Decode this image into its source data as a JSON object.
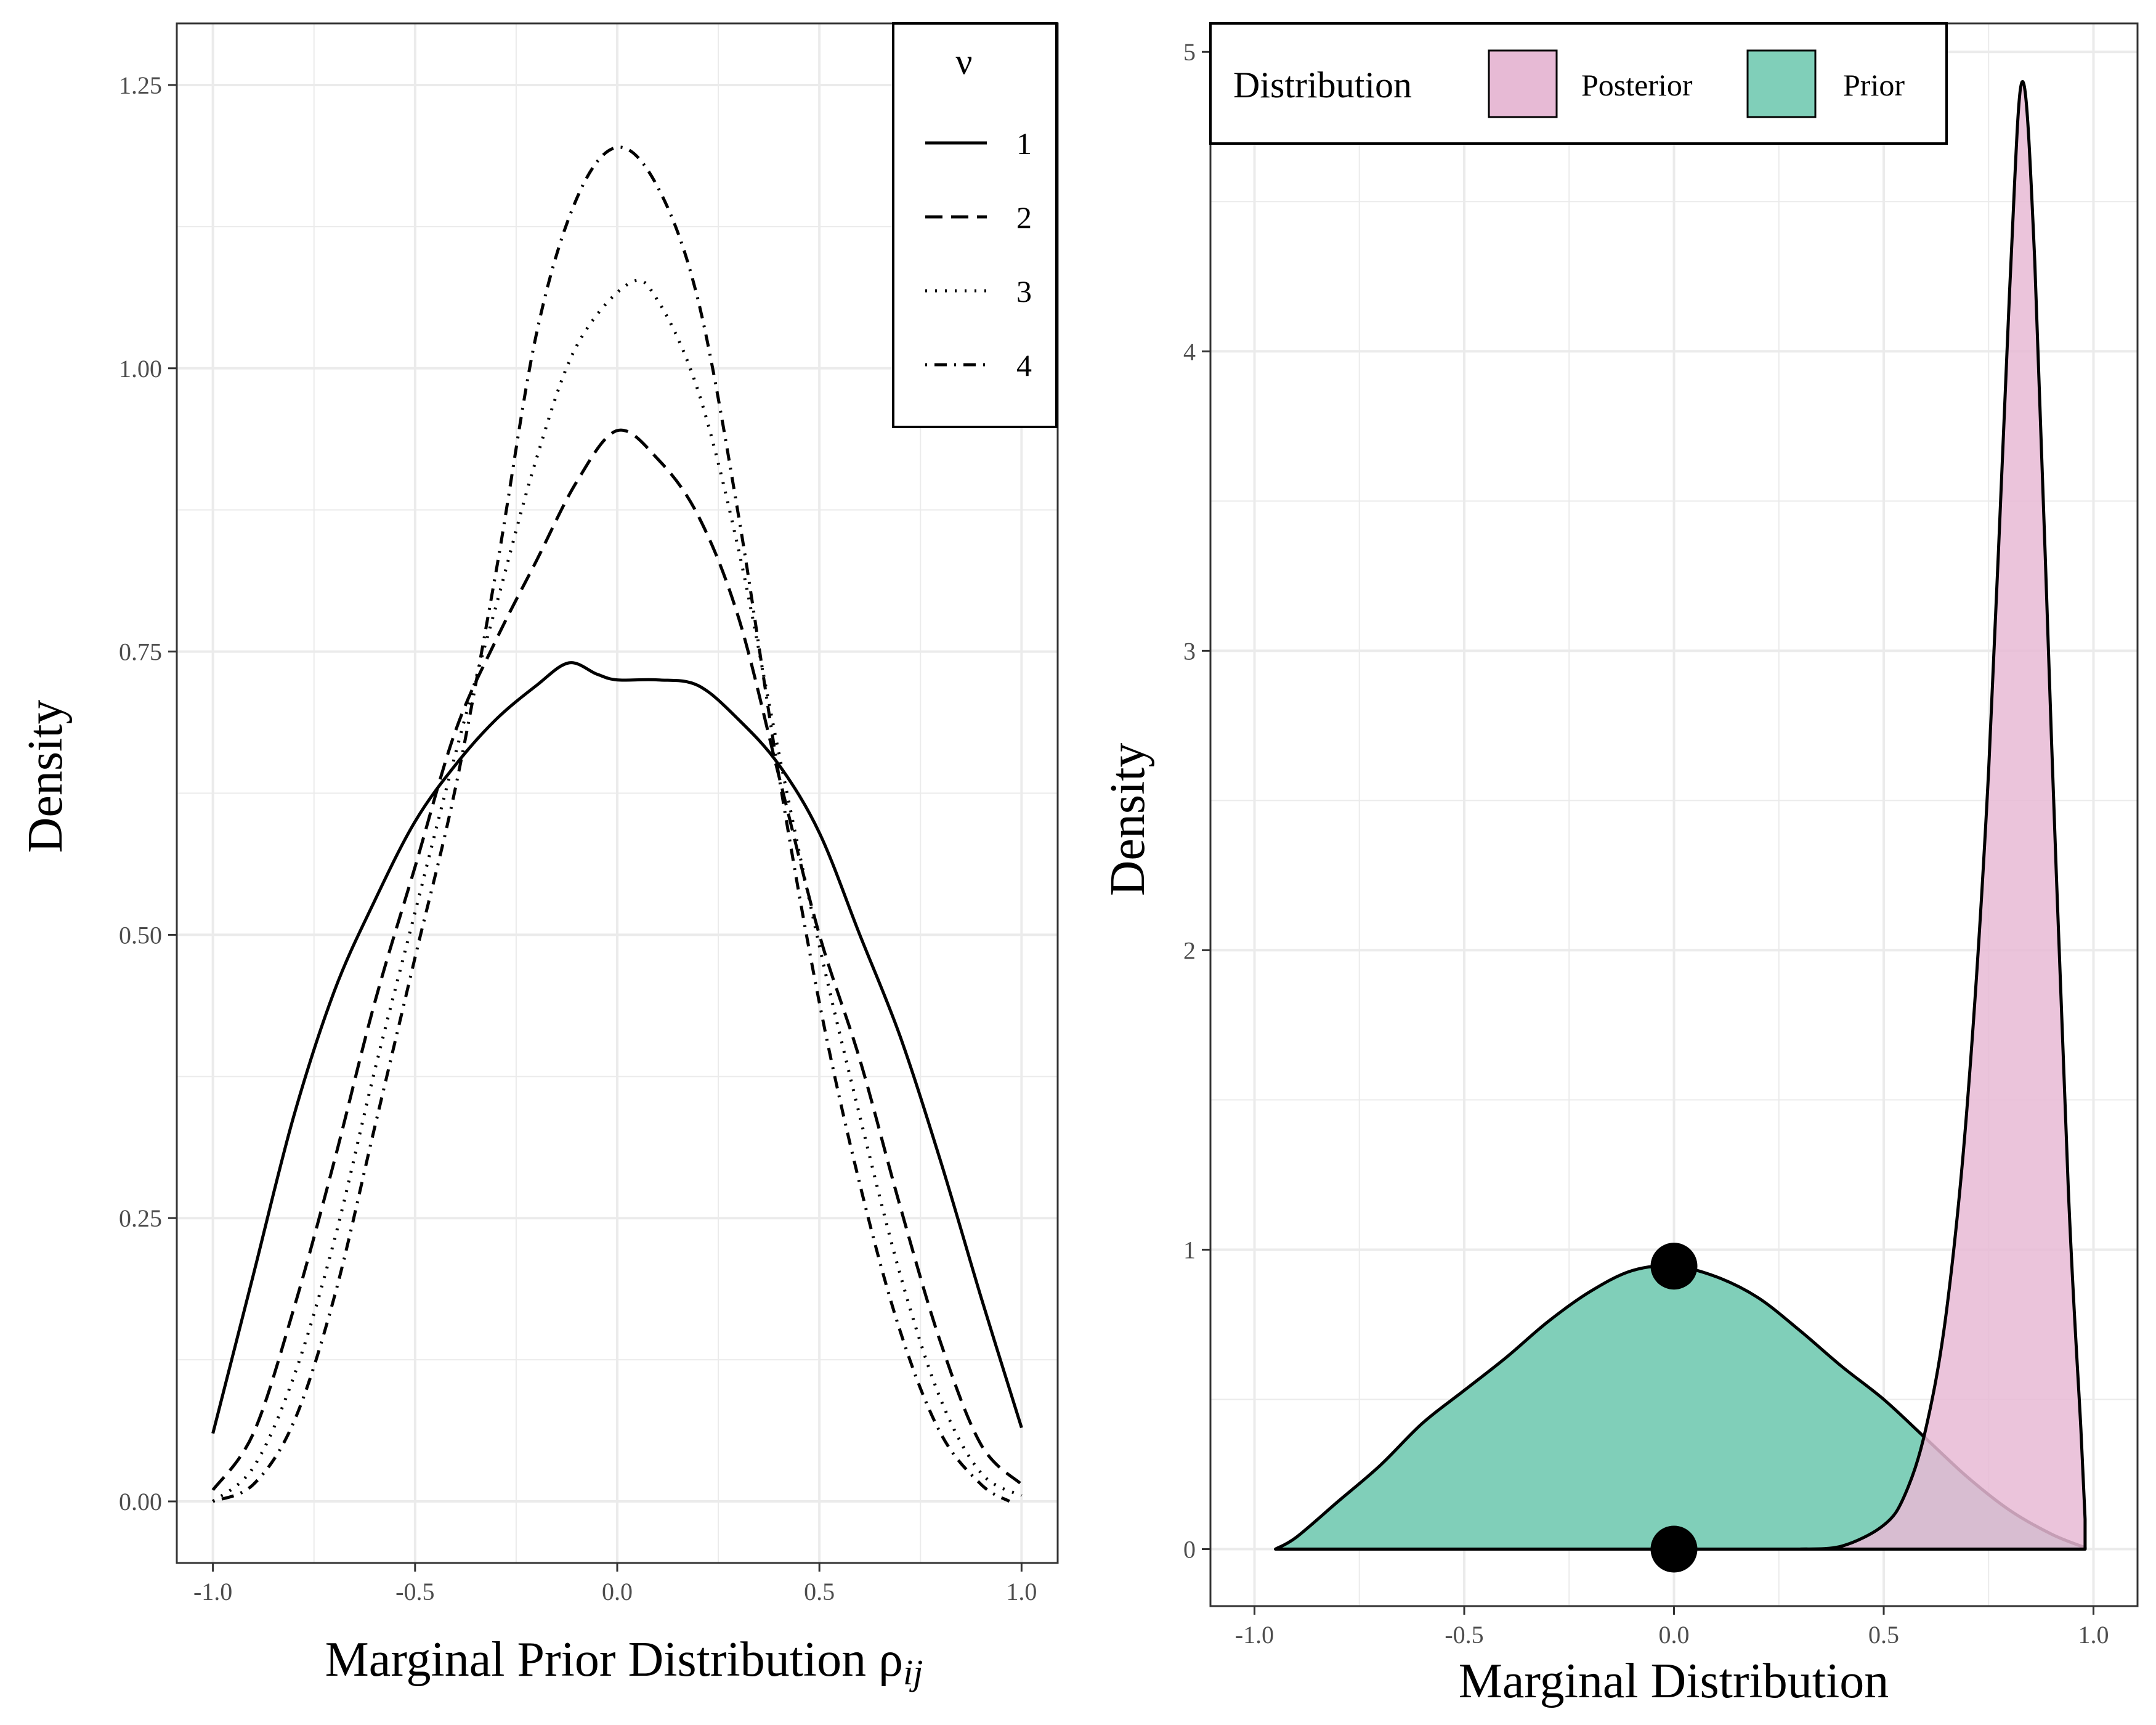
{
  "colors": {
    "grid": "#ebebeb",
    "panel_border": "#333333",
    "posterior_fill": "#e7bad5",
    "prior_fill": "#80cfb9",
    "line": "#000000"
  },
  "chart_data": [
    {
      "type": "line",
      "title": "",
      "xlabel_main": "Marginal Prior Distribution ρ",
      "xlabel_sub": "ij",
      "ylabel": "Density",
      "xlim": [
        -1.0,
        1.0
      ],
      "ylim": [
        0,
        1.25
      ],
      "x_ticks": [
        "-1.0",
        "-0.5",
        "0.0",
        "0.5",
        "1.0"
      ],
      "y_ticks": [
        "0.00",
        "0.25",
        "0.50",
        "0.75",
        "1.00",
        "1.25"
      ],
      "grid": true,
      "legend": {
        "title": "ν",
        "placement": "top-right",
        "entries": [
          "1",
          "2",
          "3",
          "4"
        ]
      },
      "series": [
        {
          "name": "1",
          "dash": "solid",
          "points": [
            [
              -1.0,
              0.06
            ],
            [
              -0.9,
              0.2
            ],
            [
              -0.8,
              0.34
            ],
            [
              -0.7,
              0.45
            ],
            [
              -0.6,
              0.53
            ],
            [
              -0.5,
              0.6
            ],
            [
              -0.4,
              0.65
            ],
            [
              -0.3,
              0.69
            ],
            [
              -0.2,
              0.72
            ],
            [
              -0.12,
              0.74
            ],
            [
              -0.05,
              0.73
            ],
            [
              0.0,
              0.725
            ],
            [
              0.1,
              0.725
            ],
            [
              0.2,
              0.72
            ],
            [
              0.3,
              0.69
            ],
            [
              0.4,
              0.65
            ],
            [
              0.5,
              0.59
            ],
            [
              0.6,
              0.5
            ],
            [
              0.7,
              0.41
            ],
            [
              0.8,
              0.3
            ],
            [
              0.9,
              0.18
            ],
            [
              1.0,
              0.065
            ]
          ]
        },
        {
          "name": "2",
          "dash": "long",
          "points": [
            [
              -1.0,
              0.01
            ],
            [
              -0.9,
              0.06
            ],
            [
              -0.8,
              0.17
            ],
            [
              -0.7,
              0.3
            ],
            [
              -0.6,
              0.44
            ],
            [
              -0.5,
              0.56
            ],
            [
              -0.4,
              0.68
            ],
            [
              -0.3,
              0.76
            ],
            [
              -0.2,
              0.83
            ],
            [
              -0.1,
              0.9
            ],
            [
              0.0,
              0.945
            ],
            [
              0.1,
              0.92
            ],
            [
              0.2,
              0.87
            ],
            [
              0.3,
              0.78
            ],
            [
              0.4,
              0.64
            ],
            [
              0.5,
              0.5
            ],
            [
              0.6,
              0.39
            ],
            [
              0.7,
              0.26
            ],
            [
              0.8,
              0.14
            ],
            [
              0.9,
              0.05
            ],
            [
              1.0,
              0.015
            ]
          ]
        },
        {
          "name": "3",
          "dash": "dotted",
          "points": [
            [
              -1.0,
              0.0
            ],
            [
              -0.9,
              0.03
            ],
            [
              -0.8,
              0.11
            ],
            [
              -0.7,
              0.23
            ],
            [
              -0.6,
              0.38
            ],
            [
              -0.5,
              0.52
            ],
            [
              -0.4,
              0.66
            ],
            [
              -0.3,
              0.79
            ],
            [
              -0.2,
              0.92
            ],
            [
              -0.1,
              1.02
            ],
            [
              0.03,
              1.075
            ],
            [
              0.1,
              1.06
            ],
            [
              0.2,
              0.98
            ],
            [
              0.3,
              0.84
            ],
            [
              0.4,
              0.66
            ],
            [
              0.5,
              0.49
            ],
            [
              0.6,
              0.34
            ],
            [
              0.7,
              0.2
            ],
            [
              0.8,
              0.09
            ],
            [
              0.9,
              0.025
            ],
            [
              1.0,
              0.005
            ]
          ]
        },
        {
          "name": "4",
          "dash": "dotdash",
          "points": [
            [
              -1.0,
              0.0
            ],
            [
              -0.9,
              0.015
            ],
            [
              -0.8,
              0.07
            ],
            [
              -0.7,
              0.18
            ],
            [
              -0.6,
              0.33
            ],
            [
              -0.5,
              0.48
            ],
            [
              -0.4,
              0.63
            ],
            [
              -0.3,
              0.82
            ],
            [
              -0.2,
              1.03
            ],
            [
              -0.1,
              1.15
            ],
            [
              0.0,
              1.195
            ],
            [
              0.1,
              1.16
            ],
            [
              0.2,
              1.06
            ],
            [
              0.3,
              0.87
            ],
            [
              0.4,
              0.64
            ],
            [
              0.5,
              0.44
            ],
            [
              0.6,
              0.28
            ],
            [
              0.7,
              0.15
            ],
            [
              0.8,
              0.06
            ],
            [
              0.9,
              0.015
            ],
            [
              0.97,
              0.0
            ]
          ]
        }
      ]
    },
    {
      "type": "area",
      "title": "",
      "xlabel": "Marginal Distribution",
      "ylabel": "Density",
      "xlim": [
        -1.0,
        1.0
      ],
      "ylim": [
        0,
        5
      ],
      "x_ticks": [
        "-1.0",
        "-0.5",
        "0.0",
        "0.5",
        "1.0"
      ],
      "y_ticks": [
        "0",
        "1",
        "2",
        "3",
        "4",
        "5"
      ],
      "grid": true,
      "legend": {
        "title": "Distribution",
        "placement": "top",
        "entries": [
          "Posterior",
          "Prior"
        ]
      },
      "series": [
        {
          "name": "Prior",
          "points": [
            [
              -0.95,
              0.0
            ],
            [
              -0.9,
              0.04
            ],
            [
              -0.8,
              0.16
            ],
            [
              -0.7,
              0.28
            ],
            [
              -0.6,
              0.42
            ],
            [
              -0.5,
              0.53
            ],
            [
              -0.4,
              0.64
            ],
            [
              -0.3,
              0.76
            ],
            [
              -0.2,
              0.86
            ],
            [
              -0.1,
              0.93
            ],
            [
              0.0,
              0.945
            ],
            [
              0.1,
              0.91
            ],
            [
              0.2,
              0.84
            ],
            [
              0.3,
              0.73
            ],
            [
              0.4,
              0.61
            ],
            [
              0.5,
              0.5
            ],
            [
              0.6,
              0.37
            ],
            [
              0.7,
              0.24
            ],
            [
              0.8,
              0.13
            ],
            [
              0.9,
              0.05
            ],
            [
              0.98,
              0.005
            ]
          ]
        },
        {
          "name": "Posterior",
          "points": [
            [
              0.3,
              0.0
            ],
            [
              0.4,
              0.01
            ],
            [
              0.5,
              0.08
            ],
            [
              0.55,
              0.18
            ],
            [
              0.6,
              0.4
            ],
            [
              0.65,
              0.8
            ],
            [
              0.7,
              1.5
            ],
            [
              0.75,
              2.6
            ],
            [
              0.8,
              4.2
            ],
            [
              0.83,
              4.9
            ],
            [
              0.86,
              4.3
            ],
            [
              0.9,
              2.7
            ],
            [
              0.94,
              1.2
            ],
            [
              0.97,
              0.4
            ],
            [
              0.98,
              0.1
            ]
          ]
        }
      ],
      "points": [
        {
          "label": "prior mode",
          "x": 0.0,
          "y": 0.945
        },
        {
          "label": "zero point",
          "x": 0.0,
          "y": 0.0
        }
      ]
    }
  ]
}
